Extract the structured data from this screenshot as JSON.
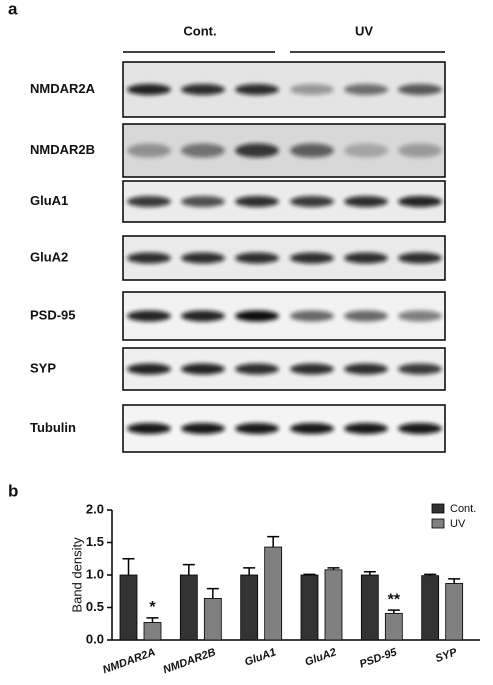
{
  "panel_a": {
    "label": "a",
    "groups": [
      "Cont.",
      "UV"
    ],
    "rows": [
      "NMDAR2A",
      "NMDAR2B",
      "GluA1",
      "GluA2",
      "PSD-95",
      "SYP",
      "Tubulin"
    ]
  },
  "chart_data": {
    "type": "bar",
    "panel_label": "b",
    "ylabel": "Band density",
    "categories": [
      "NMDAR2A",
      "NMDAR2B",
      "GluA1",
      "GluA2",
      "PSD-95",
      "SYP"
    ],
    "series": [
      {
        "name": "Cont.",
        "color": "#333333",
        "values": [
          1.0,
          1.0,
          1.0,
          1.0,
          1.0,
          0.99
        ],
        "errors": [
          0.25,
          0.16,
          0.11,
          0.01,
          0.05,
          0.02
        ]
      },
      {
        "name": "UV",
        "color": "#808080",
        "values": [
          0.27,
          0.64,
          1.43,
          1.08,
          0.41,
          0.87
        ],
        "errors": [
          0.07,
          0.15,
          0.16,
          0.03,
          0.05,
          0.07
        ]
      }
    ],
    "annotations": [
      "*",
      null,
      null,
      null,
      "**",
      null
    ],
    "ylim": [
      0,
      2
    ],
    "yticks": [
      {
        "value": 0,
        "label": "0.0"
      },
      {
        "value": 0.5,
        "label": "0.5"
      },
      {
        "value": 1,
        "label": "1.0"
      },
      {
        "value": 1.5,
        "label": "1.5"
      },
      {
        "value": 2,
        "label": "2.0"
      }
    ],
    "legend": "top-right"
  }
}
